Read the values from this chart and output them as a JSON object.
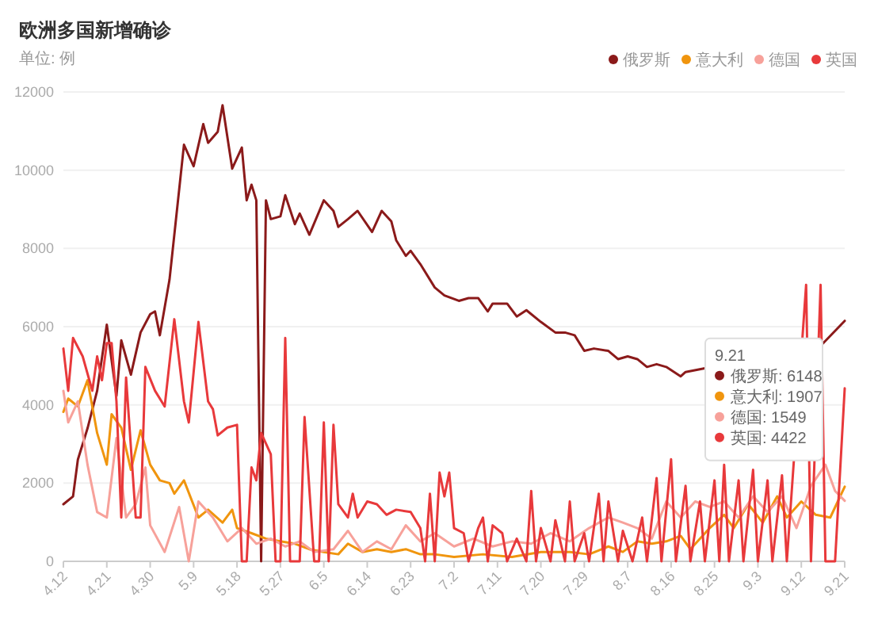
{
  "chart_data": {
    "type": "line",
    "title": "欧洲多国新增确诊",
    "subtitle": "单位: 例",
    "xlim": [
      "--04-12",
      "--09-21"
    ],
    "xticks": [
      {
        "value": "--04-12",
        "label": "4.12"
      },
      {
        "value": "--04-21",
        "label": "4.21"
      },
      {
        "value": "--04-30",
        "label": "4.30"
      },
      {
        "value": "--05-09",
        "label": "5.9"
      },
      {
        "value": "--05-18",
        "label": "5.18"
      },
      {
        "value": "--05-27",
        "label": "5.27"
      },
      {
        "value": "--06-05",
        "label": "6.5"
      },
      {
        "value": "--06-14",
        "label": "6.14"
      },
      {
        "value": "--06-23",
        "label": "6.23"
      },
      {
        "value": "--07-02",
        "label": "7.2"
      },
      {
        "value": "--07-11",
        "label": "7.11"
      },
      {
        "value": "--07-20",
        "label": "7.20"
      },
      {
        "value": "--07-29",
        "label": "7.29"
      },
      {
        "value": "--08-07",
        "label": "8.7"
      },
      {
        "value": "--08-16",
        "label": "8.16"
      },
      {
        "value": "--08-25",
        "label": "8.25"
      },
      {
        "value": "--09-03",
        "label": "9.3"
      },
      {
        "value": "--09-12",
        "label": "9.12"
      },
      {
        "value": "--09-21",
        "label": "9.21"
      }
    ],
    "ylim": [
      0,
      12000
    ],
    "yticks": [
      0,
      2000,
      4000,
      6000,
      8000,
      10000,
      12000
    ],
    "grid": "y",
    "legend": "top right",
    "marker": "none",
    "line_style": "solid",
    "annotations": [
      "9.21",
      "俄罗斯: 6148",
      "意大利: 1907",
      "德国: 1549",
      "英国: 4422"
    ],
    "series": [
      {
        "name": "俄罗斯",
        "color": "#8b1a1a",
        "x": [
          "--04-12",
          "--04-14",
          "--04-15",
          "--04-17",
          "--04-19",
          "--04-21",
          "--04-23",
          "--04-24",
          "--04-26",
          "--04-28",
          "--04-30",
          "--05-01",
          "--05-02",
          "--05-04",
          "--05-06",
          "--05-07",
          "--05-09",
          "--05-11",
          "--05-12",
          "--05-14",
          "--05-15",
          "--05-17",
          "--05-19",
          "--05-20",
          "--05-21",
          "--05-22",
          "--05-23",
          "--05-24",
          "--05-25",
          "--05-27",
          "--05-28",
          "--05-30",
          "--05-31",
          "--06-02",
          "--06-05",
          "--06-07",
          "--06-08",
          "--06-10",
          "--06-12",
          "--06-15",
          "--06-17",
          "--06-19",
          "--06-20",
          "--06-22",
          "--06-23",
          "--06-25",
          "--06-28",
          "--06-30",
          "--07-03",
          "--07-05",
          "--07-07",
          "--07-09",
          "--07-10",
          "--07-13",
          "--07-15",
          "--07-17",
          "--07-20",
          "--07-23",
          "--07-25",
          "--07-27",
          "--07-29",
          "--07-31",
          "--08-03",
          "--08-05",
          "--08-07",
          "--08-09",
          "--08-11",
          "--08-13",
          "--08-15",
          "--08-18",
          "--08-19",
          "--09-16",
          "--09-21"
        ],
        "values": [
          1460,
          1660,
          2600,
          3400,
          4360,
          6050,
          4230,
          5650,
          4770,
          5850,
          6320,
          6390,
          5780,
          7200,
          9500,
          10650,
          10100,
          11180,
          10700,
          10980,
          11660,
          10040,
          10580,
          9230,
          9630,
          9230,
          0,
          9230,
          8750,
          8820,
          9360,
          8620,
          8890,
          8350,
          9230,
          8960,
          8550,
          8750,
          8960,
          8420,
          8960,
          8690,
          8210,
          7810,
          7940,
          7600,
          7000,
          6800,
          6660,
          6730,
          6730,
          6390,
          6590,
          6590,
          6260,
          6420,
          6120,
          5850,
          5850,
          5780,
          5380,
          5440,
          5380,
          5170,
          5240,
          5170,
          4970,
          5040,
          4970,
          4730,
          4840,
          5510,
          6148
        ]
      },
      {
        "name": "意大利",
        "color": "#f0950e",
        "x": [
          "--04-12",
          "--04-13",
          "--04-15",
          "--04-17",
          "--04-19",
          "--04-21",
          "--04-22",
          "--04-24",
          "--04-26",
          "--04-28",
          "--04-30",
          "--05-02",
          "--05-04",
          "--05-05",
          "--05-07",
          "--05-10",
          "--05-12",
          "--05-15",
          "--05-17",
          "--05-18",
          "--05-21",
          "--05-24",
          "--05-27",
          "--05-30",
          "--06-02",
          "--06-05",
          "--06-08",
          "--06-10",
          "--06-13",
          "--06-16",
          "--06-19",
          "--06-22",
          "--06-25",
          "--06-28",
          "--07-02",
          "--07-08",
          "--07-14",
          "--07-20",
          "--07-26",
          "--07-30",
          "--08-03",
          "--08-06",
          "--08-09",
          "--08-12",
          "--08-15",
          "--08-18",
          "--08-20",
          "--08-24",
          "--08-27",
          "--08-29",
          "--09-01",
          "--09-04",
          "--09-07",
          "--09-09",
          "--09-12",
          "--09-15",
          "--09-18",
          "--09-21"
        ],
        "values": [
          3820,
          4160,
          3960,
          4630,
          3280,
          2470,
          3760,
          3420,
          2340,
          3350,
          2470,
          2070,
          2000,
          1730,
          2070,
          1120,
          1320,
          990,
          1320,
          850,
          720,
          580,
          510,
          450,
          310,
          240,
          180,
          450,
          240,
          310,
          240,
          310,
          180,
          180,
          110,
          180,
          110,
          240,
          240,
          180,
          380,
          240,
          510,
          450,
          510,
          650,
          310,
          850,
          1190,
          850,
          1460,
          990,
          1660,
          1120,
          1530,
          1190,
          1120,
          1907
        ]
      },
      {
        "name": "德国",
        "color": "#f7a19a",
        "x": [
          "--04-12",
          "--04-13",
          "--04-15",
          "--04-17",
          "--04-19",
          "--04-21",
          "--04-23",
          "--04-25",
          "--04-27",
          "--04-29",
          "--04-30",
          "--05-03",
          "--05-06",
          "--05-08",
          "--05-10",
          "--05-13",
          "--05-16",
          "--05-19",
          "--05-22",
          "--05-25",
          "--05-28",
          "--05-31",
          "--06-03",
          "--06-07",
          "--06-10",
          "--06-13",
          "--06-16",
          "--06-19",
          "--06-22",
          "--06-25",
          "--06-28",
          "--07-02",
          "--07-06",
          "--07-10",
          "--07-14",
          "--07-18",
          "--07-22",
          "--07-26",
          "--07-30",
          "--08-03",
          "--08-06",
          "--08-09",
          "--08-12",
          "--08-15",
          "--08-18",
          "--08-21",
          "--08-24",
          "--08-27",
          "--08-30",
          "--09-02",
          "--09-05",
          "--09-08",
          "--09-11",
          "--09-14",
          "--09-17",
          "--09-19",
          "--09-21"
        ],
        "values": [
          4360,
          3550,
          4090,
          2470,
          1260,
          1120,
          3150,
          1120,
          1460,
          2400,
          920,
          240,
          1390,
          0,
          1530,
          1120,
          510,
          850,
          450,
          580,
          380,
          510,
          240,
          310,
          780,
          240,
          510,
          310,
          920,
          510,
          720,
          380,
          580,
          380,
          510,
          450,
          720,
          510,
          850,
          1120,
          990,
          850,
          580,
          1530,
          1120,
          1530,
          1390,
          1530,
          1120,
          1660,
          1260,
          1660,
          850,
          1930,
          2470,
          1800,
          1549
        ]
      },
      {
        "name": "英国",
        "color": "#e8393b",
        "x": [
          "--04-12",
          "--04-13",
          "--04-14",
          "--04-16",
          "--04-18",
          "--04-19",
          "--04-20",
          "--04-21",
          "--04-22",
          "--04-23",
          "--04-24",
          "--04-25",
          "--04-27",
          "--04-28",
          "--04-29",
          "--05-01",
          "--05-03",
          "--05-05",
          "--05-07",
          "--05-08",
          "--05-10",
          "--05-12",
          "--05-13",
          "--05-14",
          "--05-16",
          "--05-18",
          "--05-19",
          "--05-20",
          "--05-21",
          "--05-22",
          "--05-23",
          "--05-25",
          "--05-26",
          "--05-27",
          "--05-28",
          "--05-29",
          "--05-31",
          "--06-01",
          "--06-03",
          "--06-04",
          "--06-05",
          "--06-06",
          "--06-07",
          "--06-08",
          "--06-10",
          "--06-11",
          "--06-12",
          "--06-14",
          "--06-16",
          "--06-18",
          "--06-20",
          "--06-23",
          "--06-25",
          "--06-26",
          "--06-27",
          "--06-28",
          "--06-29",
          "--06-30",
          "--07-01",
          "--07-02",
          "--07-04",
          "--07-05",
          "--07-07",
          "--07-08",
          "--07-09",
          "--07-10",
          "--07-12",
          "--07-13",
          "--07-15",
          "--07-17",
          "--07-18",
          "--07-19",
          "--07-20",
          "--07-22",
          "--07-23",
          "--07-25",
          "--07-26",
          "--07-27",
          "--07-29",
          "--07-30",
          "--08-01",
          "--08-02",
          "--08-03",
          "--08-05",
          "--08-06",
          "--08-08",
          "--08-10",
          "--08-11",
          "--08-13",
          "--08-14",
          "--08-16",
          "--08-17",
          "--08-19",
          "--08-20",
          "--08-22",
          "--08-23",
          "--08-25",
          "--08-26",
          "--08-27",
          "--08-28",
          "--08-30",
          "--08-31",
          "--09-02",
          "--09-03",
          "--09-05",
          "--09-06",
          "--09-08",
          "--09-09",
          "--09-13",
          "--09-14",
          "--09-16",
          "--09-17",
          "--09-19",
          "--09-21"
        ],
        "values": [
          5440,
          4360,
          5710,
          5240,
          4360,
          5240,
          4630,
          5580,
          5580,
          4090,
          1120,
          4700,
          1120,
          1120,
          4970,
          4360,
          3960,
          6190,
          4090,
          3550,
          6120,
          4090,
          3890,
          3220,
          3420,
          3490,
          0,
          0,
          2400,
          2070,
          3280,
          2740,
          0,
          0,
          5710,
          0,
          0,
          3690,
          0,
          0,
          3550,
          0,
          3490,
          1460,
          1120,
          1730,
          1120,
          1530,
          1460,
          1190,
          1320,
          1260,
          850,
          0,
          1730,
          0,
          2270,
          1660,
          2270,
          850,
          720,
          0,
          850,
          1120,
          0,
          920,
          720,
          0,
          580,
          0,
          1800,
          0,
          850,
          0,
          1050,
          0,
          1530,
          0,
          720,
          0,
          1730,
          0,
          1530,
          0,
          780,
          0,
          1120,
          0,
          2130,
          0,
          2610,
          0,
          1930,
          0,
          1530,
          0,
          2070,
          0,
          2470,
          0,
          2070,
          0,
          2340,
          0,
          2070,
          0,
          2200,
          0,
          7070,
          0,
          7070,
          0,
          0,
          4422
        ]
      }
    ]
  }
}
